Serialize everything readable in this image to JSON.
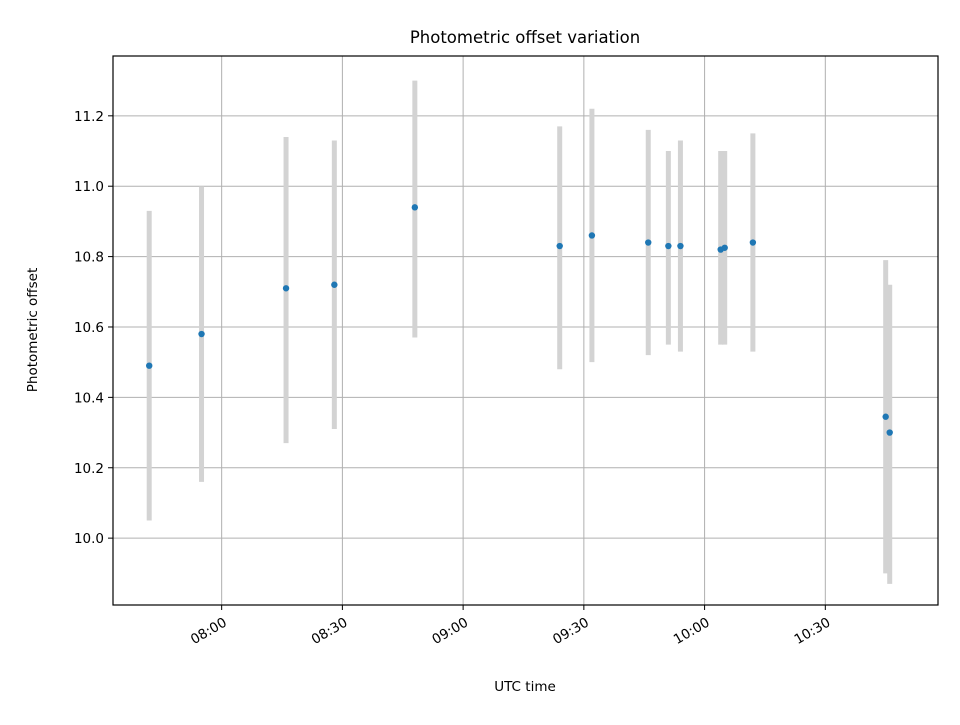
{
  "chart_data": {
    "type": "scatter",
    "title": "Photometric offset variation",
    "xlabel": "UTC time",
    "ylabel": "Photometric offset",
    "grid": true,
    "xlim": [
      "07:33",
      "10:58"
    ],
    "ylim": [
      9.81,
      11.37
    ],
    "x_ticks": [
      "08:00",
      "08:30",
      "09:00",
      "09:30",
      "10:00",
      "10:30"
    ],
    "y_ticks": [
      10.0,
      10.2,
      10.4,
      10.6,
      10.8,
      11.0,
      11.2
    ],
    "y_tick_labels": [
      "10.0",
      "10.2",
      "10.4",
      "10.6",
      "10.8",
      "11.0",
      "11.2"
    ],
    "marker_color": "#1f77b4",
    "errorbar_color": "#d3d3d3",
    "series": [
      {
        "x": [
          "07:42",
          "07:55",
          "08:16",
          "08:28",
          "08:48",
          "09:24",
          "09:32",
          "09:46",
          "09:51",
          "09:54",
          "10:04",
          "10:05",
          "10:12",
          "10:45",
          "10:46"
        ],
        "y": [
          10.49,
          10.58,
          10.71,
          10.72,
          10.94,
          10.83,
          10.86,
          10.84,
          10.83,
          10.83,
          10.82,
          10.825,
          10.84,
          10.345,
          10.3
        ],
        "yerr_low": [
          10.05,
          10.16,
          10.27,
          10.31,
          10.57,
          10.48,
          10.5,
          10.52,
          10.55,
          10.53,
          10.55,
          10.55,
          10.53,
          9.9,
          9.87
        ],
        "yerr_high": [
          10.93,
          11.0,
          11.14,
          11.13,
          11.3,
          11.17,
          11.22,
          11.16,
          11.1,
          11.13,
          11.1,
          11.1,
          11.15,
          10.79,
          10.72
        ]
      }
    ]
  }
}
